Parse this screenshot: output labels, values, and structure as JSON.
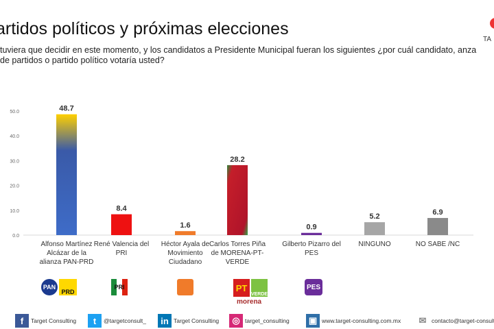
{
  "title": "artidos políticos y próximas elecciones",
  "question": "tuviera que decidir en este momento, y los candidatos a Presidente Municipal fueran los siguientes ¿por cuál candidato, anza de partidos o partido político votaría usted?",
  "logo_text": "TA CO",
  "chart_data": {
    "type": "bar",
    "categories": [
      "Alfonso Martínez Alcázar de la alianza PAN-PRD",
      "René Valencia del PRI",
      "Héctor Ayala de Movimiento Ciudadano",
      "Carlos Torres Piña de MORENA-PT-VERDE",
      "Gilberto Pizarro del PES",
      "NINGUNO",
      "NO SABE /NC"
    ],
    "values": [
      48.7,
      8.4,
      1.6,
      28.2,
      0.9,
      5.2,
      6.9
    ],
    "value_labels": [
      "48.7",
      "8.4",
      "1.6",
      "28.2",
      "0.9",
      "5.2",
      "6.9"
    ],
    "colors": [
      "#3a5fc0",
      "#ee1111",
      "#f07b2a",
      "#c4162c",
      "#6a2d9a",
      "#a6a6a6",
      "#8a8a8a"
    ],
    "ylim": [
      0,
      50
    ],
    "yticks": [
      "0.0",
      "10.0",
      "20.0",
      "30.0",
      "40.0",
      "50.0"
    ],
    "grid": false,
    "legend": "none"
  },
  "parties": [
    "PAN",
    "PRD",
    "PRI",
    "MC",
    "PT",
    "VERDE",
    "morena",
    "PES"
  ],
  "watermark": "TARGET CONSULTING",
  "footer": [
    {
      "icon": "facebook-icon",
      "text": "Target Consulting",
      "color": "#3b5998"
    },
    {
      "icon": "twitter-icon",
      "text": "@targetconsult_",
      "color": "#1da1f2"
    },
    {
      "icon": "linkedin-icon",
      "text": "Target Consulting",
      "color": "#0077b5"
    },
    {
      "icon": "instagram-icon",
      "text": "target_consulting",
      "color": "#d62976"
    },
    {
      "icon": "web-icon",
      "text": "www.target-consulting.com.mx",
      "color": "#2f6fa8"
    },
    {
      "icon": "mail-icon",
      "text": "contacto@target-consulting",
      "color": "#888"
    }
  ]
}
